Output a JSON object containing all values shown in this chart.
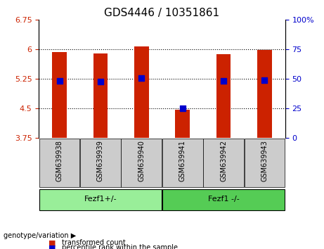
{
  "title": "GDS4446 / 10351861",
  "samples": [
    "GSM639938",
    "GSM639939",
    "GSM639940",
    "GSM639941",
    "GSM639942",
    "GSM639943"
  ],
  "bar_values": [
    5.93,
    5.9,
    6.08,
    4.47,
    5.88,
    5.99
  ],
  "percentile_values": [
    5.2,
    5.18,
    5.27,
    4.5,
    5.19,
    5.22
  ],
  "ylim": [
    3.75,
    6.75
  ],
  "y_ticks": [
    3.75,
    4.5,
    5.25,
    6.0,
    6.75
  ],
  "y_tick_labels": [
    "3.75",
    "4.5",
    "5.25",
    "6",
    "6.75"
  ],
  "y2_ticks": [
    0,
    25,
    50,
    75,
    100
  ],
  "y2_tick_labels": [
    "0",
    "25",
    "50",
    "75",
    "100%"
  ],
  "bar_color": "#cc2200",
  "dot_color": "#0000cc",
  "group1_label": "Fezf1+/-",
  "group2_label": "Fezf1 -/-",
  "group1_indices": [
    0,
    1,
    2
  ],
  "group2_indices": [
    3,
    4,
    5
  ],
  "group1_color": "#99ee99",
  "group2_color": "#55cc55",
  "genotype_label": "genotype/variation",
  "legend1": "transformed count",
  "legend2": "percentile rank within the sample",
  "grid_color": "#000000",
  "sample_bg_color": "#cccccc",
  "bar_width": 0.35,
  "dot_size": 40
}
